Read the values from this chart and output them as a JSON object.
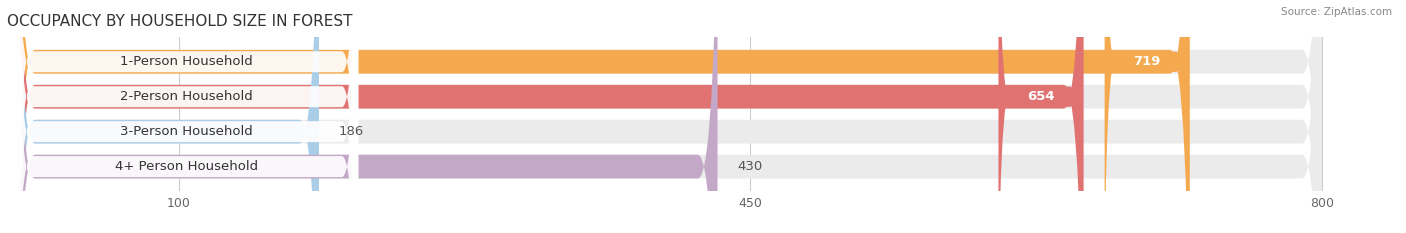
{
  "title": "OCCUPANCY BY HOUSEHOLD SIZE IN FOREST",
  "source": "Source: ZipAtlas.com",
  "categories": [
    "1-Person Household",
    "2-Person Household",
    "3-Person Household",
    "4+ Person Household"
  ],
  "values": [
    719,
    654,
    186,
    430
  ],
  "bar_colors": [
    "#F5A94E",
    "#E07272",
    "#AACDE8",
    "#C4A8C8"
  ],
  "background_bar_color": "#EBEBEB",
  "label_bg_color": "#FFFFFF",
  "xlim_data": [
    0,
    800
  ],
  "xticks": [
    100,
    450,
    800
  ],
  "figsize": [
    14.06,
    2.33
  ],
  "dpi": 100,
  "bar_height": 0.68,
  "label_fontsize": 9.5,
  "title_fontsize": 11,
  "value_label_color_inside": "#FFFFFF",
  "value_label_color_outside": "#555555",
  "background_color": "#FFFFFF",
  "grid_color": "#CCCCCC",
  "title_color": "#333333",
  "source_color": "#888888"
}
